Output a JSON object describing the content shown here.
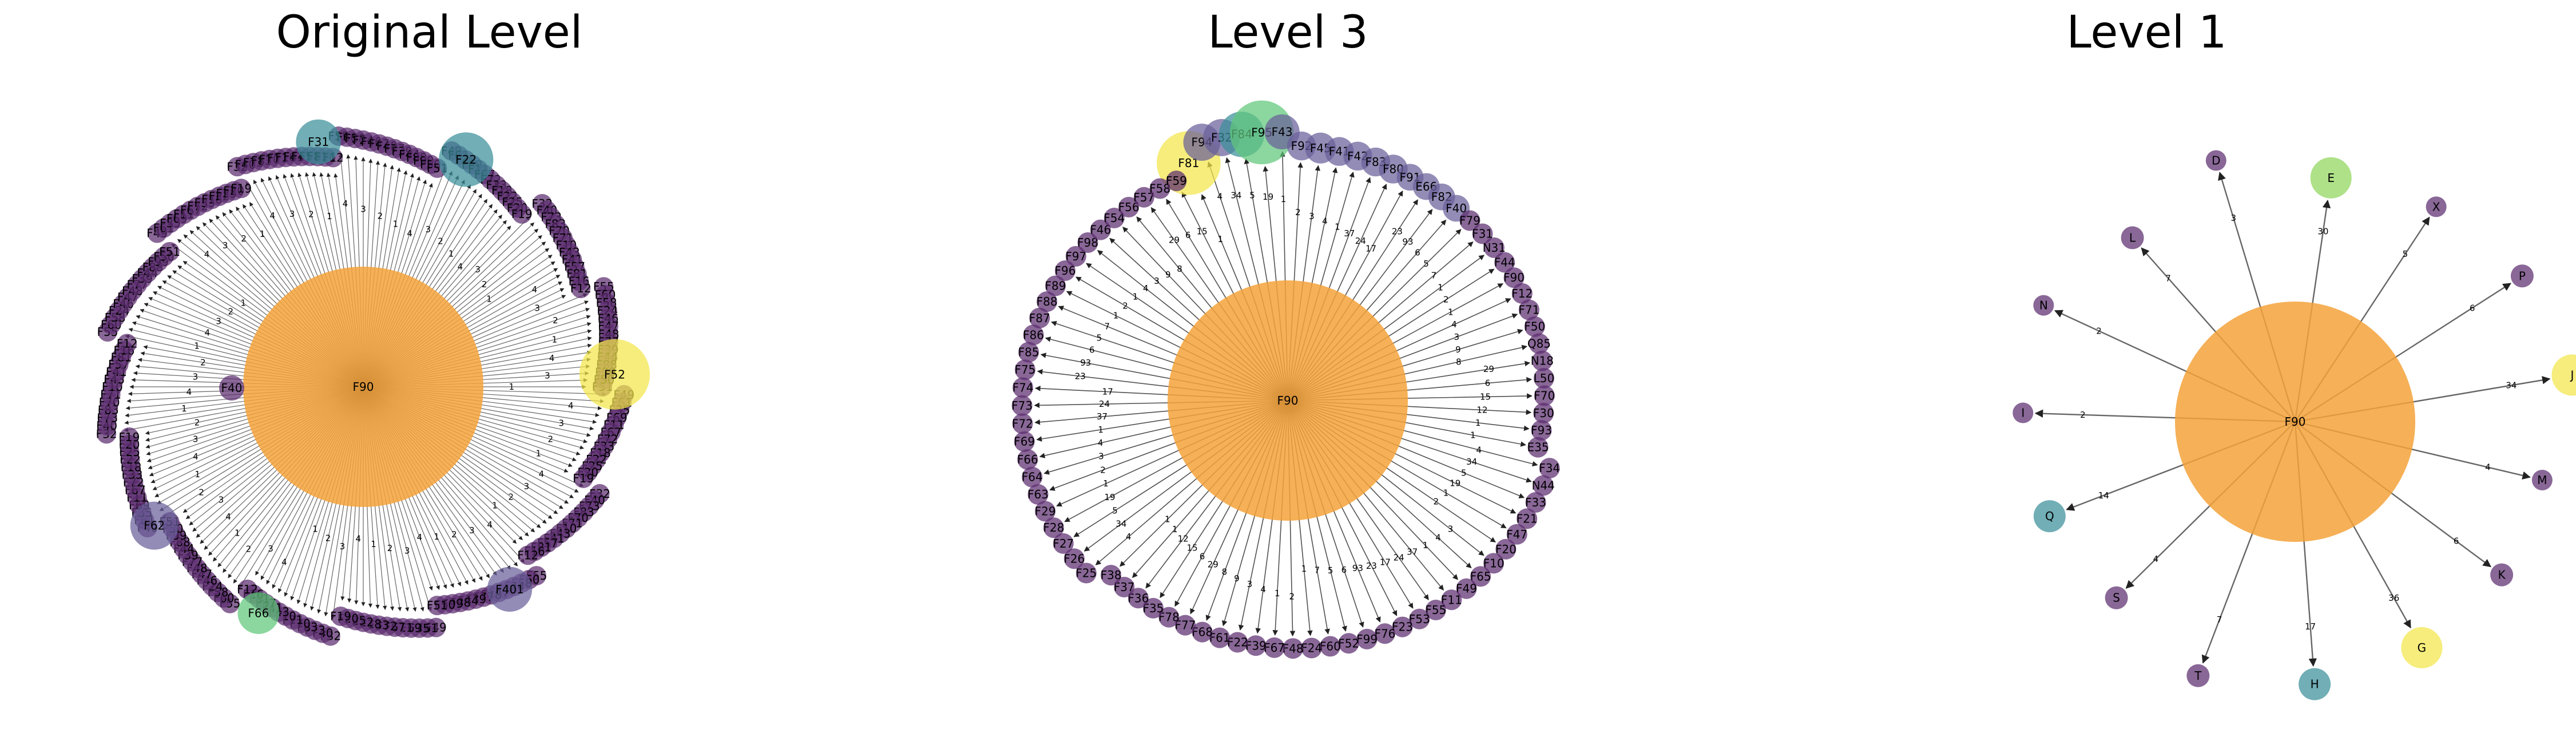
{
  "colors": {
    "center": "#f5a23a",
    "purple": "#5b2c6f",
    "slate": "#6a5f9a",
    "teal": "#3a8f9a",
    "green": "#5fc87a",
    "lime": "#8fd65a",
    "yellow": "#f2e64a",
    "edge": "#333333"
  },
  "panels": [
    {
      "title": "Original Level",
      "center": "F90",
      "dense": true,
      "count": 200,
      "labels": [
        "F51",
        "F49",
        "F61",
        "F35",
        "F69",
        "F11",
        "F67",
        "F72",
        "F33",
        "F18",
        "F22",
        "F25",
        "F20",
        "F19",
        "F32",
        "F40",
        "F73",
        "F83",
        "F70",
        "F71",
        "F10",
        "F43",
        "F41",
        "F57",
        "F81",
        "F16",
        "F12",
        "F55",
        "F60",
        "F58",
        "F24",
        "F46",
        "F47",
        "F48",
        "F77",
        "F39",
        "F44",
        "F88",
        "F99",
        "F50"
      ],
      "special": [
        {
          "label": "F52",
          "color": "yellow",
          "size": 44
        },
        {
          "label": "F22",
          "color": "teal",
          "size": 34
        },
        {
          "label": "F31",
          "color": "teal",
          "size": 28
        },
        {
          "label": "F62",
          "color": "slate",
          "size": 30
        },
        {
          "label": "F401",
          "color": "slate",
          "size": 28
        },
        {
          "label": "F66",
          "color": "green",
          "size": 26
        }
      ]
    },
    {
      "title": "Level 3",
      "center": "F90",
      "dense": false,
      "nodes": [
        {
          "label": "F81",
          "color": "yellow",
          "size": 62
        },
        {
          "label": "F94",
          "color": "slate",
          "size": 36
        },
        {
          "label": "F32",
          "color": "slate",
          "size": 36
        },
        {
          "label": "F84",
          "color": "teal",
          "size": 44
        },
        {
          "label": "F95",
          "color": "green",
          "size": 62
        },
        {
          "label": "F43",
          "color": "slate",
          "size": 34
        },
        {
          "label": "F92",
          "color": "slate",
          "size": 28
        },
        {
          "label": "F45",
          "color": "slate",
          "size": 30
        },
        {
          "label": "F41",
          "color": "slate",
          "size": 28
        },
        {
          "label": "F42",
          "color": "slate",
          "size": 28
        },
        {
          "label": "F83",
          "color": "slate",
          "size": 28
        },
        {
          "label": "F80",
          "color": "slate",
          "size": 28
        },
        {
          "label": "F91",
          "color": "slate",
          "size": 26
        },
        {
          "label": "E66",
          "color": "slate",
          "size": 26
        },
        {
          "label": "F82",
          "color": "slate",
          "size": 26
        },
        {
          "label": "F40",
          "color": "slate",
          "size": 26
        },
        {
          "label": "F79",
          "color": "purple",
          "size": 20
        },
        {
          "label": "F31",
          "color": "purple",
          "size": 20
        },
        {
          "label": "N31",
          "color": "purple",
          "size": 20
        },
        {
          "label": "F44",
          "color": "purple",
          "size": 20
        },
        {
          "label": "F90",
          "color": "purple",
          "size": 20
        },
        {
          "label": "F12",
          "color": "purple",
          "size": 20
        },
        {
          "label": "F71",
          "color": "purple",
          "size": 20
        },
        {
          "label": "F50",
          "color": "purple",
          "size": 20
        },
        {
          "label": "Q85",
          "color": "purple",
          "size": 20
        },
        {
          "label": "N18",
          "color": "purple",
          "size": 20
        },
        {
          "label": "L50",
          "color": "purple",
          "size": 20
        },
        {
          "label": "F70",
          "color": "purple",
          "size": 20
        },
        {
          "label": "F30",
          "color": "purple",
          "size": 20
        },
        {
          "label": "F93",
          "color": "purple",
          "size": 20
        },
        {
          "label": "E35",
          "color": "purple",
          "size": 20
        },
        {
          "label": "F34",
          "color": "purple",
          "size": 20
        },
        {
          "label": "N44",
          "color": "purple",
          "size": 20
        },
        {
          "label": "F33",
          "color": "purple",
          "size": 20
        },
        {
          "label": "F21",
          "color": "purple",
          "size": 20
        },
        {
          "label": "F47",
          "color": "purple",
          "size": 20
        },
        {
          "label": "F20",
          "color": "purple",
          "size": 20
        },
        {
          "label": "F10",
          "color": "purple",
          "size": 20
        },
        {
          "label": "F65",
          "color": "purple",
          "size": 20
        },
        {
          "label": "F49",
          "color": "purple",
          "size": 20
        },
        {
          "label": "F11",
          "color": "purple",
          "size": 20
        },
        {
          "label": "F55",
          "color": "purple",
          "size": 20
        },
        {
          "label": "F53",
          "color": "purple",
          "size": 20
        },
        {
          "label": "F23",
          "color": "purple",
          "size": 20
        },
        {
          "label": "F76",
          "color": "purple",
          "size": 20
        },
        {
          "label": "F99",
          "color": "purple",
          "size": 20
        },
        {
          "label": "F52",
          "color": "purple",
          "size": 20
        },
        {
          "label": "F60",
          "color": "purple",
          "size": 20
        },
        {
          "label": "F24",
          "color": "purple",
          "size": 20
        },
        {
          "label": "F48",
          "color": "purple",
          "size": 20
        },
        {
          "label": "F67",
          "color": "purple",
          "size": 20
        },
        {
          "label": "F39",
          "color": "purple",
          "size": 20
        },
        {
          "label": "F22",
          "color": "purple",
          "size": 20
        },
        {
          "label": "F61",
          "color": "purple",
          "size": 20
        },
        {
          "label": "F68",
          "color": "purple",
          "size": 20
        },
        {
          "label": "F77",
          "color": "purple",
          "size": 20
        },
        {
          "label": "F78",
          "color": "purple",
          "size": 20
        },
        {
          "label": "F35",
          "color": "purple",
          "size": 20
        },
        {
          "label": "F36",
          "color": "purple",
          "size": 20
        },
        {
          "label": "F37",
          "color": "purple",
          "size": 20
        },
        {
          "label": "F38",
          "color": "purple",
          "size": 20
        },
        {
          "label": "F25",
          "color": "purple",
          "size": 20
        },
        {
          "label": "F26",
          "color": "purple",
          "size": 20
        },
        {
          "label": "F27",
          "color": "purple",
          "size": 20
        },
        {
          "label": "F28",
          "color": "purple",
          "size": 20
        },
        {
          "label": "F29",
          "color": "purple",
          "size": 20
        },
        {
          "label": "F63",
          "color": "purple",
          "size": 20
        },
        {
          "label": "F64",
          "color": "purple",
          "size": 20
        },
        {
          "label": "F66",
          "color": "purple",
          "size": 20
        },
        {
          "label": "F69",
          "color": "purple",
          "size": 20
        },
        {
          "label": "F72",
          "color": "purple",
          "size": 20
        },
        {
          "label": "F73",
          "color": "purple",
          "size": 20
        },
        {
          "label": "F74",
          "color": "purple",
          "size": 20
        },
        {
          "label": "F75",
          "color": "purple",
          "size": 20
        },
        {
          "label": "F85",
          "color": "purple",
          "size": 20
        },
        {
          "label": "F86",
          "color": "purple",
          "size": 20
        },
        {
          "label": "F87",
          "color": "purple",
          "size": 20
        },
        {
          "label": "F88",
          "color": "purple",
          "size": 20
        },
        {
          "label": "F89",
          "color": "purple",
          "size": 20
        },
        {
          "label": "F96",
          "color": "purple",
          "size": 20
        },
        {
          "label": "F97",
          "color": "purple",
          "size": 20
        },
        {
          "label": "F98",
          "color": "purple",
          "size": 20
        },
        {
          "label": "F46",
          "color": "purple",
          "size": 20
        },
        {
          "label": "F54",
          "color": "purple",
          "size": 20
        },
        {
          "label": "F56",
          "color": "purple",
          "size": 20
        },
        {
          "label": "F57",
          "color": "purple",
          "size": 20
        },
        {
          "label": "F58",
          "color": "purple",
          "size": 20
        },
        {
          "label": "F59",
          "color": "purple",
          "size": 20
        }
      ],
      "edgeWeights": [
        "1",
        "4",
        "34",
        "5",
        "19",
        "1",
        "2",
        "3",
        "4",
        "1",
        "37",
        "24",
        "17",
        "23",
        "93",
        "6",
        "5",
        "7",
        "1",
        "2",
        "1",
        "4",
        "3",
        "9",
        "8",
        "29",
        "6",
        "15",
        "12",
        "1"
      ]
    },
    {
      "title": "Level 1",
      "center": "F90",
      "dense": false,
      "leaves": [
        {
          "label": "D",
          "color": "purple",
          "size": 18,
          "weight": "3"
        },
        {
          "label": "E",
          "color": "lime",
          "size": 36,
          "weight": "30"
        },
        {
          "label": "X",
          "color": "purple",
          "size": 18,
          "weight": "5"
        },
        {
          "label": "P",
          "color": "purple",
          "size": 20,
          "weight": "6"
        },
        {
          "label": "J",
          "color": "yellow",
          "size": 36,
          "weight": "34"
        },
        {
          "label": "M",
          "color": "purple",
          "size": 18,
          "weight": "4"
        },
        {
          "label": "K",
          "color": "purple",
          "size": 20,
          "weight": "6"
        },
        {
          "label": "G",
          "color": "yellow",
          "size": 36,
          "weight": "36"
        },
        {
          "label": "H",
          "color": "teal",
          "size": 28,
          "weight": "17"
        },
        {
          "label": "T",
          "color": "purple",
          "size": 20,
          "weight": "7"
        },
        {
          "label": "S",
          "color": "purple",
          "size": 20,
          "weight": "4"
        },
        {
          "label": "Q",
          "color": "teal",
          "size": 28,
          "weight": "14"
        },
        {
          "label": "I",
          "color": "purple",
          "size": 18,
          "weight": "2"
        },
        {
          "label": "N",
          "color": "purple",
          "size": 18,
          "weight": "2"
        },
        {
          "label": "L",
          "color": "purple",
          "size": 20,
          "weight": "7"
        }
      ]
    }
  ]
}
